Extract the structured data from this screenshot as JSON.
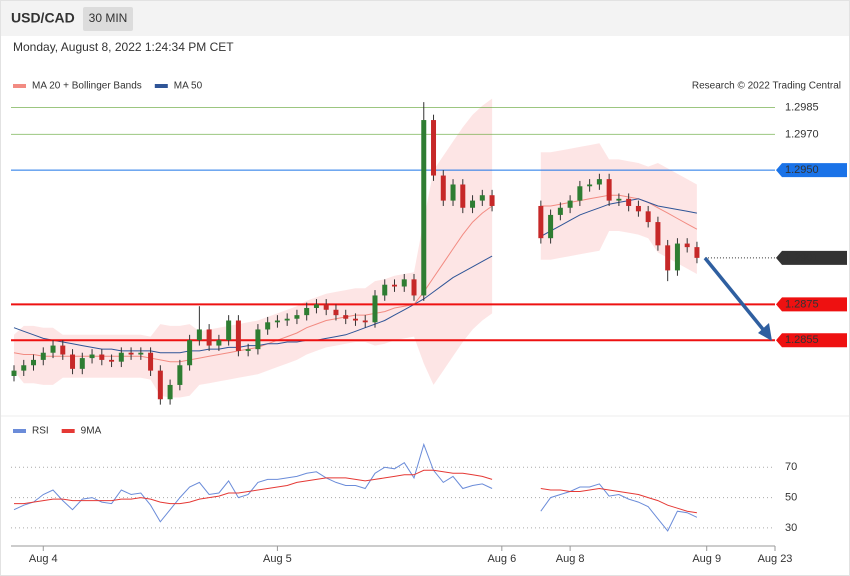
{
  "header": {
    "symbol": "USD/CAD",
    "interval": "30 MIN",
    "timestamp": "Monday, August 8, 2022 1:24:34 PM CET",
    "copyright": "Research © 2022 Trading Central"
  },
  "chart_data": [
    {
      "type": "candlestick",
      "up_color": "#2e7d32",
      "down_color": "#c62828",
      "ylim": [
        1.2816,
        1.2992
      ],
      "categories": [
        null,
        null,
        null,
        "Aug 4",
        null,
        null,
        null,
        null,
        null,
        null,
        null,
        null,
        null,
        null,
        null,
        null,
        null,
        null,
        null,
        null,
        null,
        null,
        null,
        null,
        null,
        null,
        null,
        "Aug 5",
        null,
        null,
        null,
        null,
        null,
        null,
        null,
        null,
        null,
        null,
        null,
        null,
        null,
        null,
        null,
        null,
        null,
        null,
        null,
        null,
        null,
        null,
        "Aug 6",
        null,
        null,
        null,
        null,
        null,
        null,
        "Aug 8",
        null,
        null,
        null,
        null,
        null,
        null,
        null,
        null,
        null,
        null,
        null,
        null,
        null,
        "Aug 9",
        null,
        null,
        null,
        null,
        null,
        null,
        "Aug 23"
      ],
      "open": [
        1.2835,
        1.2838,
        1.2841,
        1.2844,
        1.2848,
        1.2852,
        1.2847,
        1.2839,
        1.2845,
        1.2847,
        1.2844,
        1.2843,
        1.2848,
        1.2847,
        1.2848,
        1.2838,
        1.2822,
        1.283,
        1.2841,
        1.2855,
        1.2861,
        1.2852,
        1.2855,
        1.2866,
        1.2849,
        1.285,
        1.2861,
        1.2865,
        1.2866,
        1.2867,
        1.2869,
        1.2873,
        1.2875,
        1.2872,
        1.2869,
        1.2867,
        1.2866,
        1.2865,
        1.288,
        1.2886,
        1.2885,
        1.2889,
        1.288,
        1.2978,
        1.2947,
        1.2933,
        1.2942,
        1.2929,
        1.2933,
        1.2936,
        null,
        null,
        null,
        null,
        1.293,
        1.2912,
        1.2925,
        1.2929,
        1.2933,
        1.2941,
        1.2942,
        1.2945,
        1.2933,
        1.2934,
        1.293,
        1.2927,
        1.2921,
        1.2908,
        1.2894,
        1.2909,
        1.2907,
        null,
        null,
        null,
        null,
        null,
        null,
        null,
        null
      ],
      "high": [
        1.2841,
        1.2844,
        1.2847,
        1.2851,
        1.2855,
        1.2855,
        1.285,
        1.2848,
        1.285,
        1.285,
        1.2847,
        1.2851,
        1.2851,
        1.2851,
        1.2851,
        1.2841,
        1.2833,
        1.2844,
        1.2858,
        1.2874,
        1.2864,
        1.2858,
        1.2869,
        1.2869,
        1.2853,
        1.2864,
        1.2868,
        1.2869,
        1.287,
        1.2872,
        1.2876,
        1.2878,
        1.2878,
        1.2875,
        1.2872,
        1.287,
        1.2869,
        1.2883,
        1.2889,
        1.2889,
        1.2892,
        1.2892,
        1.2988,
        1.2981,
        1.295,
        1.2945,
        1.2945,
        1.2936,
        1.2939,
        1.2939,
        null,
        null,
        null,
        null,
        1.2933,
        1.2928,
        1.2932,
        1.2936,
        1.2944,
        1.2945,
        1.2948,
        1.2948,
        1.2937,
        1.2937,
        1.2933,
        1.293,
        1.2924,
        1.2911,
        1.2912,
        1.2912,
        1.291,
        null,
        null,
        null,
        null,
        null,
        null,
        null,
        null
      ],
      "low": [
        1.2832,
        1.2835,
        1.2838,
        1.2841,
        1.2845,
        1.2844,
        1.2836,
        1.2836,
        1.2842,
        1.2841,
        1.284,
        1.284,
        1.2844,
        1.2844,
        1.2835,
        1.2819,
        1.2819,
        1.2827,
        1.2838,
        1.2852,
        1.2849,
        1.2849,
        1.2852,
        1.2846,
        1.2846,
        1.2847,
        1.2858,
        1.2862,
        1.2863,
        1.2864,
        1.2866,
        1.287,
        1.2869,
        1.2866,
        1.2864,
        1.2863,
        1.2862,
        1.2862,
        1.2877,
        1.2882,
        1.2882,
        1.2877,
        1.2877,
        1.2944,
        1.293,
        1.293,
        1.2926,
        1.2926,
        1.293,
        1.2927,
        null,
        null,
        null,
        null,
        1.2909,
        1.2909,
        1.2922,
        1.2926,
        1.293,
        1.2938,
        1.2939,
        1.293,
        1.293,
        1.2927,
        1.2924,
        1.2918,
        1.2905,
        1.2888,
        1.2891,
        1.2904,
        1.2898,
        null,
        null,
        null,
        null,
        null,
        null,
        null,
        null
      ],
      "close": [
        1.2838,
        1.2841,
        1.2844,
        1.2848,
        1.2852,
        1.2847,
        1.2839,
        1.2845,
        1.2847,
        1.2844,
        1.2843,
        1.2848,
        1.2847,
        1.2848,
        1.2838,
        1.2822,
        1.283,
        1.2841,
        1.2855,
        1.2861,
        1.2852,
        1.2855,
        1.2866,
        1.2849,
        1.285,
        1.2861,
        1.2865,
        1.2866,
        1.2867,
        1.2869,
        1.2873,
        1.2875,
        1.2872,
        1.2869,
        1.2867,
        1.2866,
        1.2865,
        1.288,
        1.2886,
        1.2885,
        1.2889,
        1.288,
        1.2978,
        1.2947,
        1.2933,
        1.2942,
        1.2929,
        1.2933,
        1.2936,
        1.293,
        null,
        null,
        null,
        null,
        1.2912,
        1.2925,
        1.2929,
        1.2933,
        1.2941,
        1.2942,
        1.2945,
        1.2933,
        1.2934,
        1.293,
        1.2927,
        1.2921,
        1.2908,
        1.2894,
        1.2909,
        1.2907,
        1.2901,
        null,
        null,
        null,
        null,
        null,
        null,
        null,
        null
      ],
      "series": [
        {
          "name": "MA 20 + Bollinger Bands",
          "color": "#f28b82",
          "band_color": "#fde0e0",
          "values": [
            1.2848,
            1.2847,
            1.2847,
            1.2846,
            1.2846,
            1.2846,
            1.2846,
            1.2846,
            1.2846,
            1.2846,
            1.2846,
            1.2846,
            1.2846,
            1.2846,
            1.2845,
            1.2844,
            1.2843,
            1.2843,
            1.2844,
            1.2845,
            1.2846,
            1.2847,
            1.2848,
            1.2849,
            1.285,
            1.2851,
            1.2853,
            1.2855,
            1.2857,
            1.2859,
            1.2862,
            1.2864,
            1.2866,
            1.2867,
            1.2868,
            1.2869,
            1.2869,
            1.287,
            1.2871,
            1.2873,
            1.2874,
            1.2875,
            1.2882,
            1.289,
            1.2898,
            1.2906,
            1.2914,
            1.2921,
            1.2926,
            1.293,
            null,
            null,
            null,
            null,
            1.293,
            1.293,
            1.2931,
            1.2932,
            1.2933,
            1.2934,
            1.2935,
            1.2936,
            1.2936,
            1.2935,
            1.2934,
            1.2932,
            1.2929,
            1.2926,
            1.2923,
            1.292,
            1.2917,
            null,
            null,
            null,
            null,
            null,
            null,
            null,
            null
          ],
          "upper": [
            1.2858,
            1.2863,
            1.2863,
            1.2862,
            1.2862,
            1.2858,
            1.2858,
            1.2858,
            1.2858,
            1.2858,
            1.2858,
            1.2858,
            1.2858,
            1.2858,
            1.2857,
            1.2864,
            1.2863,
            1.2863,
            1.2864,
            1.286,
            1.2861,
            1.2862,
            1.2863,
            1.2864,
            1.2865,
            1.2866,
            1.2868,
            1.287,
            1.2872,
            1.2874,
            1.2877,
            1.2879,
            1.2881,
            1.2882,
            1.2883,
            1.2884,
            1.2884,
            1.2888,
            1.2889,
            1.2891,
            1.2892,
            1.2893,
            1.2922,
            1.295,
            1.2958,
            1.2966,
            1.2974,
            1.2981,
            1.2986,
            1.299,
            null,
            null,
            null,
            null,
            1.296,
            1.296,
            1.2961,
            1.2962,
            1.2963,
            1.2964,
            1.2965,
            1.2956,
            1.2956,
            1.2955,
            1.2954,
            1.2952,
            1.2954,
            1.2951,
            1.2948,
            1.2945,
            1.2942,
            null,
            null,
            null,
            null,
            null,
            null,
            null,
            null
          ],
          "lower": [
            1.2838,
            1.2831,
            1.2831,
            1.283,
            1.283,
            1.2834,
            1.2834,
            1.2834,
            1.2834,
            1.2834,
            1.2834,
            1.2834,
            1.2834,
            1.2834,
            1.2833,
            1.2824,
            1.2823,
            1.2823,
            1.2824,
            1.283,
            1.2831,
            1.2832,
            1.2833,
            1.2834,
            1.2835,
            1.2836,
            1.2838,
            1.284,
            1.2842,
            1.2844,
            1.2847,
            1.2849,
            1.2851,
            1.2852,
            1.2853,
            1.2854,
            1.2854,
            1.2852,
            1.2853,
            1.2855,
            1.2856,
            1.2857,
            1.2842,
            1.283,
            1.2838,
            1.2846,
            1.2854,
            1.2861,
            1.2866,
            1.287,
            null,
            null,
            null,
            null,
            1.29,
            1.29,
            1.2901,
            1.2902,
            1.2903,
            1.2904,
            1.2905,
            1.2916,
            1.2916,
            1.2915,
            1.2914,
            1.2912,
            1.2904,
            1.2901,
            1.2898,
            1.2895,
            1.2892,
            null,
            null,
            null,
            null,
            null,
            null,
            null,
            null
          ]
        },
        {
          "name": "MA 50",
          "color": "#2f5597",
          "values": [
            1.2862,
            1.286,
            1.2858,
            1.2856,
            1.2855,
            1.2854,
            1.2853,
            1.2852,
            1.2851,
            1.285,
            1.285,
            1.2849,
            1.2849,
            1.2849,
            1.2849,
            1.2848,
            1.2848,
            1.2848,
            1.2849,
            1.2849,
            1.285,
            1.285,
            1.2851,
            1.2851,
            1.2852,
            1.2852,
            1.2853,
            1.2853,
            1.2854,
            1.2854,
            1.2855,
            1.2855,
            1.2856,
            1.2857,
            1.2858,
            1.286,
            1.2862,
            1.2864,
            1.2866,
            1.2869,
            1.2872,
            1.2875,
            1.2878,
            1.2882,
            1.2886,
            1.289,
            1.2893,
            1.2896,
            1.2899,
            1.2902,
            null,
            null,
            null,
            null,
            1.2913,
            1.2916,
            1.2919,
            1.2922,
            1.2925,
            1.2927,
            1.2929,
            1.2931,
            1.2932,
            1.2933,
            1.2934,
            1.2932,
            1.293,
            1.2929,
            1.2928,
            1.2927,
            1.2926,
            null,
            null,
            null,
            null,
            null,
            null,
            null,
            null
          ]
        }
      ],
      "levels": [
        {
          "value": 1.2985,
          "color": "#5aa02c"
        },
        {
          "value": 1.297,
          "label": "1.2970",
          "color": "#5aa02c"
        },
        {
          "value": 1.295,
          "label": "1.2950",
          "color": "#1a73e8",
          "tag": true
        },
        {
          "value": 1.2901,
          "color": "#333333",
          "tag": true,
          "dotted": true
        },
        {
          "value": 1.2875,
          "color": "#ee1111",
          "tag": true
        },
        {
          "value": 1.2855,
          "color": "#ee1111",
          "tag": true
        }
      ]
    },
    {
      "type": "line",
      "ylim": [
        22,
        88
      ],
      "yticks": [
        30,
        50,
        70
      ],
      "series": [
        {
          "name": "RSI",
          "color": "#6b8cd9",
          "values": [
            42,
            45,
            47,
            52,
            55,
            48,
            42,
            49,
            50,
            47,
            46,
            55,
            52,
            53,
            45,
            34,
            42,
            50,
            57,
            60,
            52,
            53,
            61,
            50,
            52,
            60,
            62,
            62,
            63,
            64,
            66,
            67,
            63,
            60,
            58,
            58,
            56,
            66,
            70,
            69,
            73,
            63,
            85,
            68,
            60,
            64,
            56,
            58,
            59,
            56,
            null,
            null,
            null,
            null,
            41,
            50,
            52,
            54,
            57,
            57,
            59,
            51,
            52,
            49,
            47,
            44,
            36,
            28,
            41,
            40,
            37,
            null,
            null,
            null,
            null,
            null,
            null,
            null,
            null
          ]
        },
        {
          "name": "9MA",
          "color": "#e53935",
          "values": [
            46,
            46,
            47,
            48,
            49,
            49,
            48,
            48,
            48,
            48,
            48,
            49,
            49,
            50,
            49,
            47,
            46,
            46,
            47,
            49,
            50,
            51,
            53,
            53,
            54,
            55,
            56,
            57,
            58,
            60,
            61,
            62,
            63,
            63,
            63,
            62,
            61,
            62,
            63,
            64,
            65,
            65,
            68,
            68,
            67,
            66,
            66,
            65,
            64,
            62,
            null,
            null,
            null,
            null,
            56,
            55,
            55,
            54,
            54,
            55,
            56,
            55,
            54,
            53,
            52,
            50,
            48,
            45,
            43,
            41,
            40,
            null,
            null,
            null,
            null,
            null,
            null,
            null,
            null
          ]
        }
      ]
    }
  ]
}
